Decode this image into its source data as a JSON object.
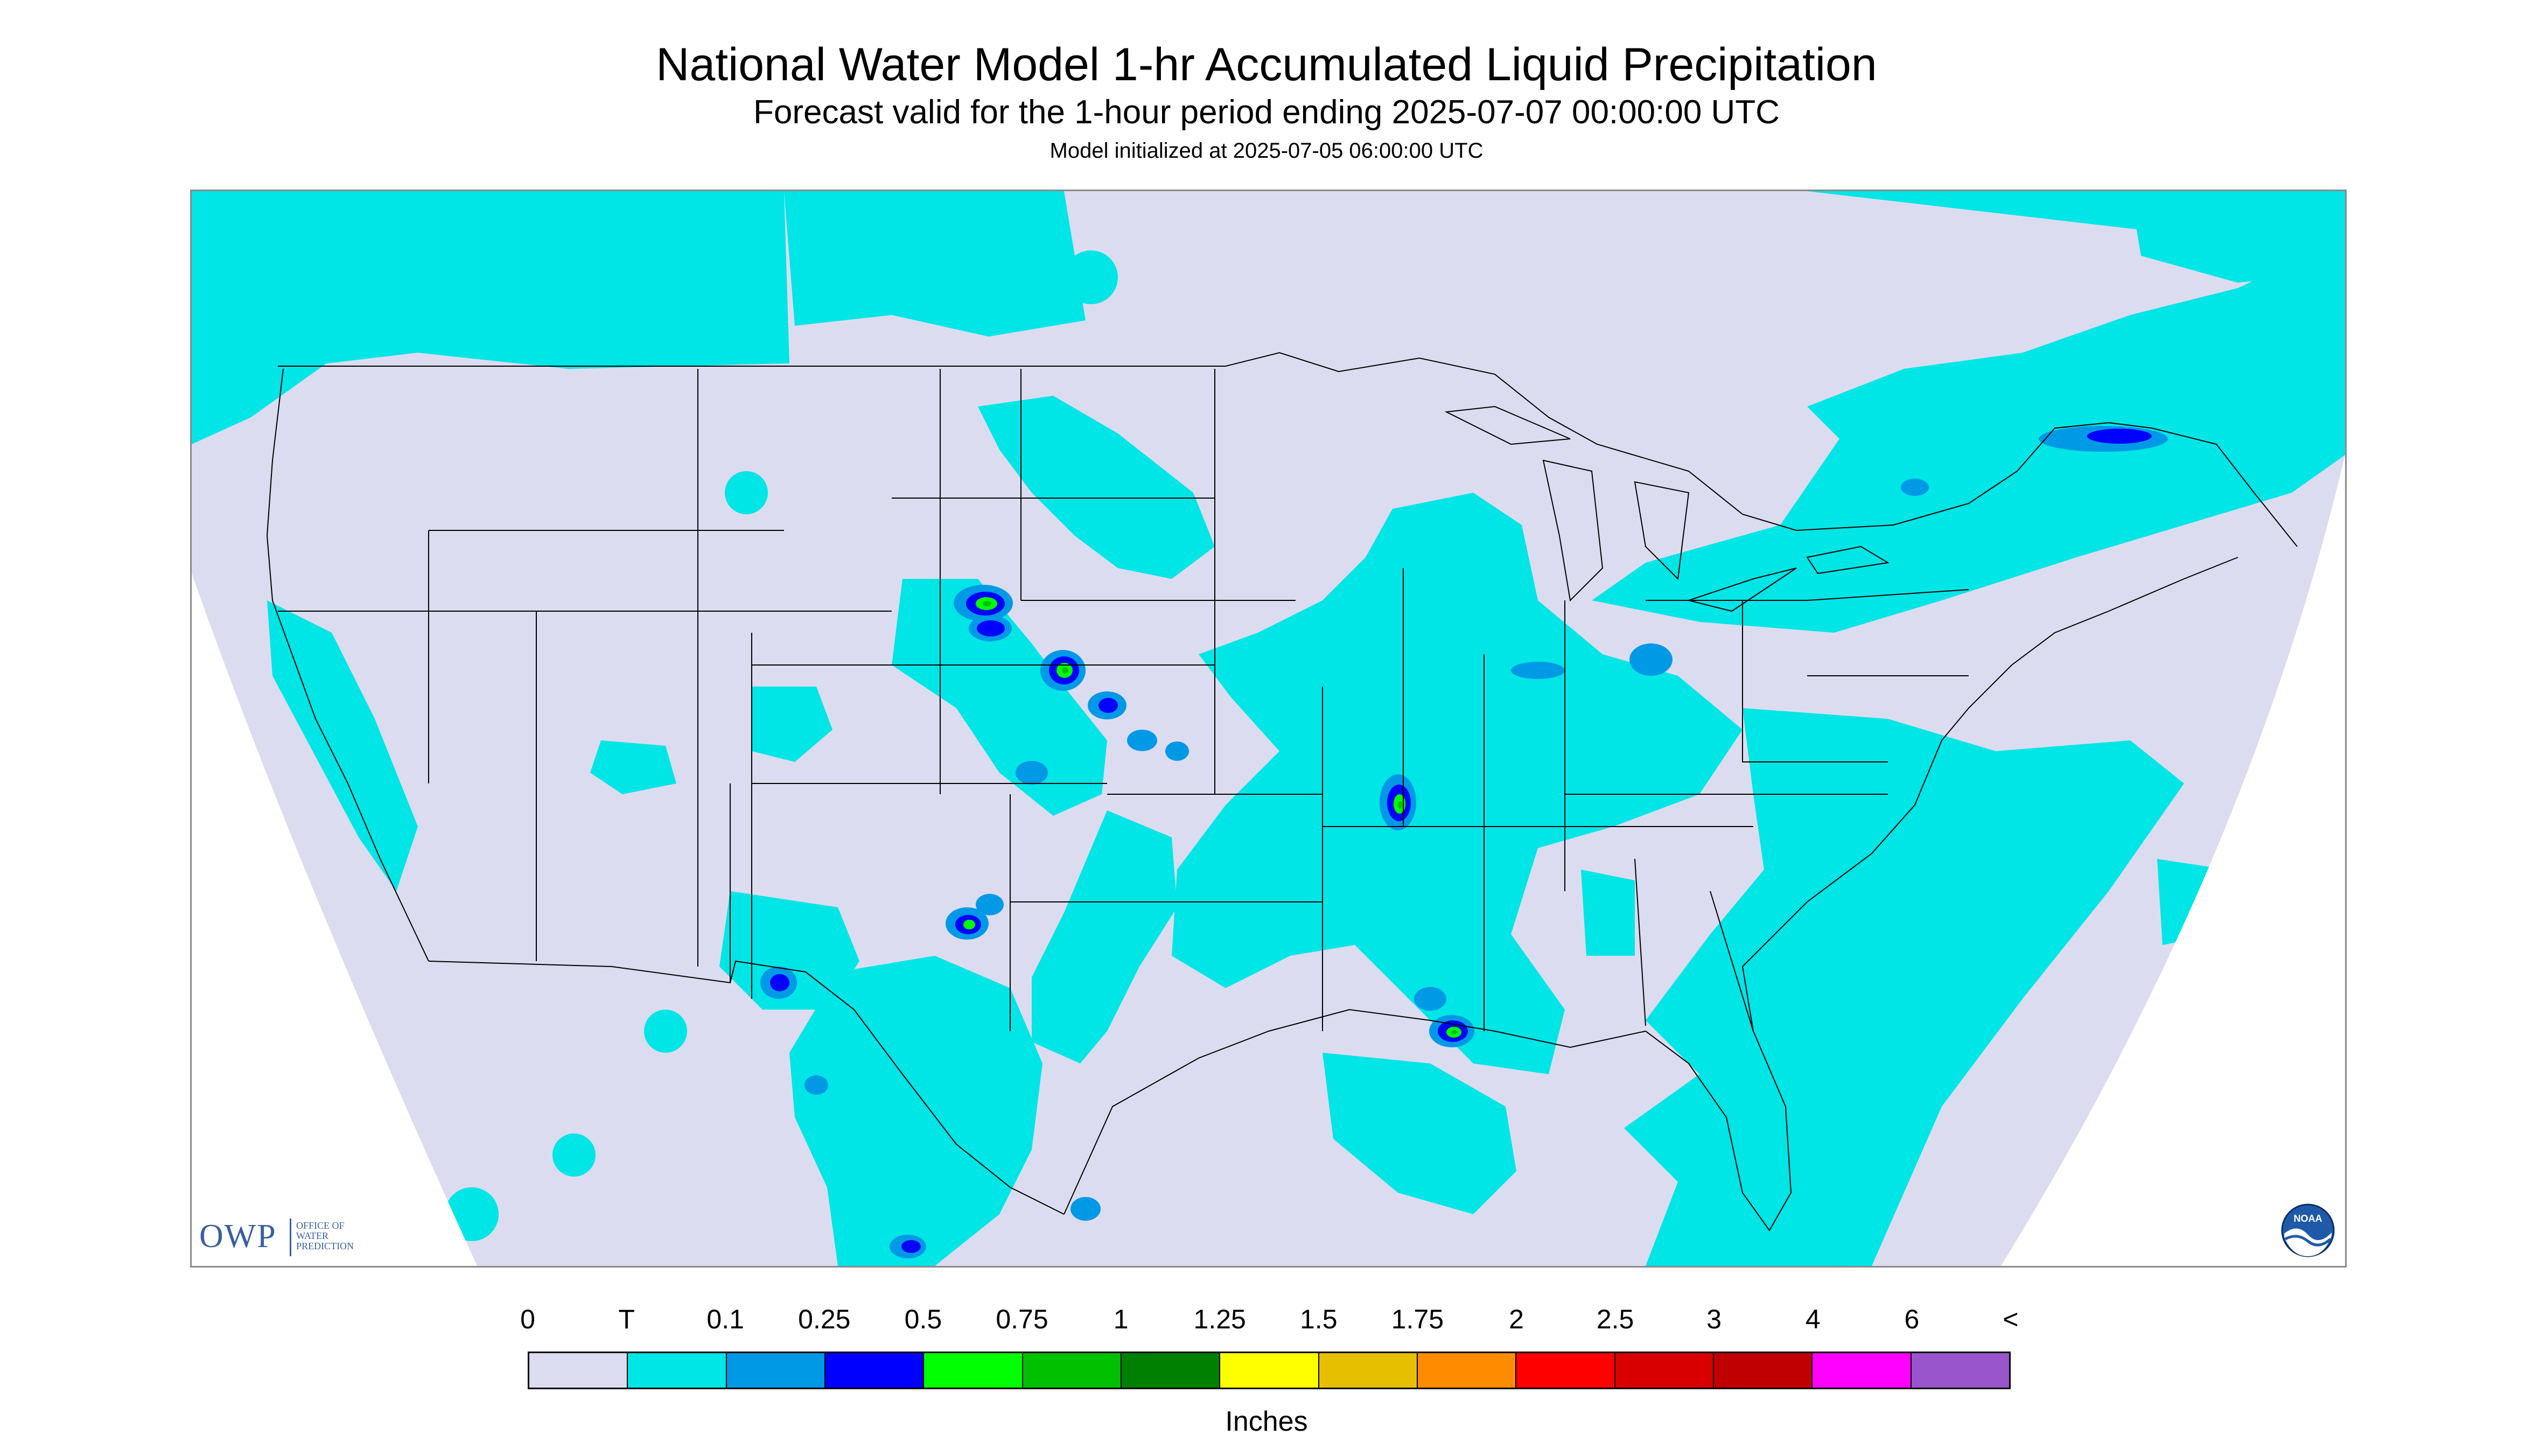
{
  "header": {
    "title": "National Water Model 1-hr Accumulated Liquid Precipitation",
    "subtitle": "Forecast valid for the 1-hour period ending 2025-07-07 00:00:00 UTC",
    "init": "Model initialized at 2025-07-05 06:00:00 UTC"
  },
  "map": {
    "background_color": "#dcdcf0",
    "outside_domain_color": "#ffffff",
    "boundary_color": "#000000",
    "precip_colors": {
      "trace": "#00e5e5",
      "p10": "#0099e6",
      "p25": "#0000ff",
      "p50": "#00ff00",
      "p75": "#00c000"
    }
  },
  "logos": {
    "owp_letters": "OWP",
    "owp_words": "OFFICE OF WATER PREDICTION",
    "noaa_text": "NOAA"
  },
  "legend": {
    "labels": [
      "0",
      "T",
      "0.1",
      "0.25",
      "0.5",
      "0.75",
      "1",
      "1.25",
      "1.5",
      "1.75",
      "2",
      "2.5",
      "3",
      "4",
      "6",
      "<"
    ],
    "colors": [
      "#dcdcf0",
      "#00e5e5",
      "#0099e6",
      "#0000ff",
      "#00ff00",
      "#00c000",
      "#008000",
      "#ffff00",
      "#e6c000",
      "#ff8c00",
      "#ff0000",
      "#d80000",
      "#c00000",
      "#ff00ff",
      "#9955cc"
    ],
    "unit": "Inches"
  }
}
